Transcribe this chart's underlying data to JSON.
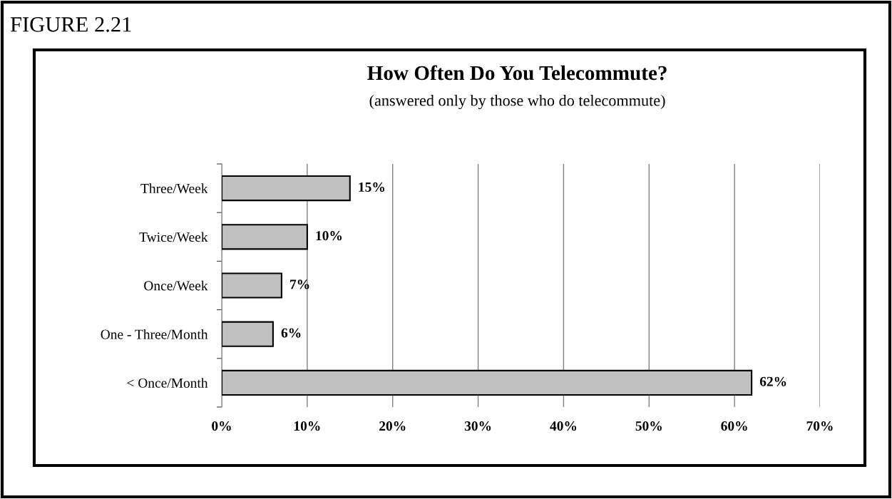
{
  "chart_data": {
    "type": "bar",
    "orientation": "horizontal",
    "title": "How Often Do You Telecommute?",
    "subtitle": "(answered only by those who do telecommute)",
    "annotations": [
      "FIGURE 2.21"
    ],
    "categories": [
      "Three/Week",
      "Twice/Week",
      "Once/Week",
      "One - Three/Month",
      "< Once/Month"
    ],
    "values": [
      15,
      10,
      7,
      6,
      62
    ],
    "value_labels": [
      "15%",
      "10%",
      "7%",
      "6%",
      "62%"
    ],
    "color": "#c0c0c0",
    "xlim": [
      0,
      70
    ],
    "xticks": [
      {
        "value": 0,
        "label": "0%"
      },
      {
        "value": 10,
        "label": "10%"
      },
      {
        "value": 20,
        "label": "20%"
      },
      {
        "value": 30,
        "label": "30%"
      },
      {
        "value": 40,
        "label": "40%"
      },
      {
        "value": 50,
        "label": "50%"
      },
      {
        "value": 60,
        "label": "60%"
      },
      {
        "value": 70,
        "label": "70%"
      }
    ],
    "grid": "x",
    "legend": false
  }
}
